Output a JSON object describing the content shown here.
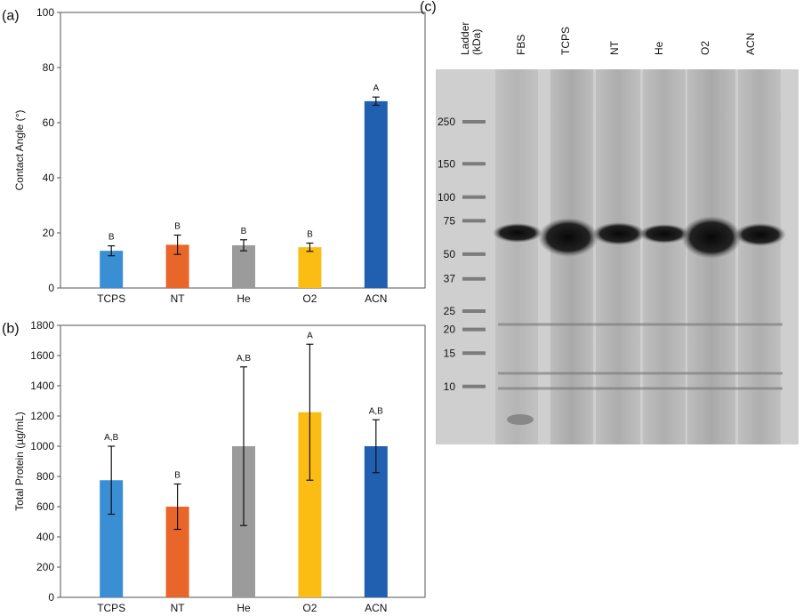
{
  "chart_data": [
    {
      "type": "bar",
      "panel_label": "(a)",
      "y_label": "Contact Angle (°)",
      "categories": [
        "TCPS",
        "NT",
        "He",
        "O2",
        "ACN"
      ],
      "series": [
        {
          "colors": [
            "#3a8fd4",
            "#e8662a",
            "#9b9b9b",
            "#fbbc13",
            "#2160b0"
          ],
          "values": [
            13.5,
            15.7,
            15.5,
            14.8,
            67.8
          ],
          "errors": [
            1.8,
            3.5,
            2,
            1.5,
            1.5
          ]
        }
      ],
      "annotations": [
        "B",
        "B",
        "B",
        "B",
        "A"
      ],
      "ylim": [
        0,
        100
      ],
      "yticks": [
        0,
        20,
        40,
        60,
        80,
        100
      ]
    },
    {
      "type": "bar",
      "panel_label": "(b)",
      "y_label": "Total Protein (µg/mL)",
      "categories": [
        "TCPS",
        "NT",
        "He",
        "O2",
        "ACN"
      ],
      "series": [
        {
          "colors": [
            "#3a8fd4",
            "#e8662a",
            "#9b9b9b",
            "#fbbc13",
            "#2160b0"
          ],
          "values": [
            775,
            600,
            1000,
            1225,
            1000
          ],
          "errors": [
            225,
            150,
            525,
            450,
            175
          ]
        }
      ],
      "annotations": [
        "A,B",
        "B",
        "A,B",
        "A",
        "A,B"
      ],
      "ylim": [
        0,
        1800
      ],
      "yticks": [
        0,
        200,
        400,
        600,
        800,
        1000,
        1200,
        1400,
        1600,
        1800
      ]
    }
  ],
  "gel": {
    "panel_label": "(c)",
    "lanes": [
      "Ladder\n(kDa)",
      "FBS",
      "TCPS",
      "NT",
      "He",
      "O2",
      "ACN"
    ],
    "ladder_kda": [
      250,
      150,
      100,
      75,
      50,
      37,
      25,
      20,
      15,
      10
    ]
  }
}
